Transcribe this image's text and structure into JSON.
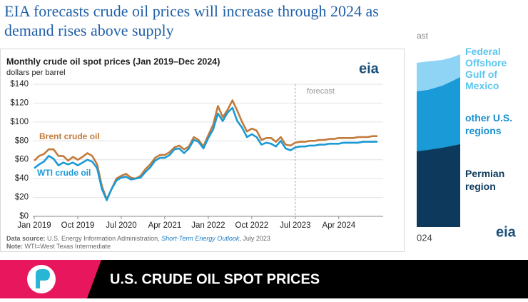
{
  "headline": "EIA forecasts crude oil prices will increase through 2024 as demand rises above supply",
  "chart_data": {
    "type": "line",
    "title": "Monthly crude oil spot prices (Jan 2019–Dec 2024)",
    "y_label": "dollars per barrel",
    "logo": "eia",
    "forecast_label": "forecast",
    "forecast_start": "Jul 2023",
    "categories": [
      "Jan 2019",
      null,
      null,
      null,
      null,
      null,
      null,
      null,
      null,
      "Oct 2019",
      null,
      null,
      null,
      null,
      null,
      null,
      null,
      null,
      "Jul 2020",
      null,
      null,
      null,
      null,
      null,
      null,
      null,
      null,
      "Apr 2021",
      null,
      null,
      null,
      null,
      null,
      null,
      null,
      null,
      "Jan 2022",
      null,
      null,
      null,
      null,
      null,
      null,
      null,
      null,
      "Oct 2022",
      null,
      null,
      null,
      null,
      null,
      null,
      null,
      null,
      "Jul 2023",
      null,
      null,
      null,
      null,
      null,
      null,
      null,
      null,
      "Apr 2024",
      null,
      null,
      null,
      null,
      null,
      null,
      null,
      null
    ],
    "series": [
      {
        "name": "Brent crude oil",
        "color": "#c27a3a",
        "values": [
          59,
          64,
          66,
          71,
          71,
          64,
          64,
          59,
          63,
          60,
          63,
          67,
          64,
          55,
          32,
          18,
          29,
          40,
          43,
          45,
          41,
          40,
          43,
          50,
          55,
          62,
          65,
          65,
          68,
          73,
          75,
          71,
          74,
          84,
          81,
          74,
          86,
          97,
          117,
          105,
          113,
          123,
          112,
          100,
          90,
          93,
          91,
          81,
          83,
          83,
          79,
          84,
          76,
          75,
          78,
          79,
          79,
          80,
          80,
          81,
          81,
          82,
          82,
          83,
          83,
          83,
          83,
          84,
          84,
          84,
          85,
          85
        ]
      },
      {
        "name": "WTI crude oil",
        "color": "#1a9ad6",
        "values": [
          51,
          55,
          58,
          64,
          61,
          54,
          57,
          55,
          57,
          54,
          57,
          60,
          58,
          51,
          29,
          17,
          29,
          38,
          41,
          42,
          39,
          40,
          41,
          47,
          52,
          59,
          62,
          62,
          65,
          71,
          72,
          67,
          72,
          81,
          79,
          72,
          83,
          92,
          109,
          101,
          110,
          115,
          101,
          94,
          84,
          87,
          84,
          76,
          78,
          77,
          74,
          80,
          72,
          70,
          73,
          74,
          74,
          75,
          75,
          76,
          76,
          77,
          77,
          77,
          78,
          78,
          78,
          78,
          79,
          79,
          79,
          79
        ]
      }
    ],
    "ylim": [
      0,
      140
    ],
    "yticks": [
      {
        "value": 0,
        "label": "$0"
      },
      {
        "value": 20,
        "label": "$20"
      },
      {
        "value": 40,
        "label": "$40"
      },
      {
        "value": 60,
        "label": "$60"
      },
      {
        "value": 80,
        "label": "$80"
      },
      {
        "value": 100,
        "label": "$100"
      },
      {
        "value": 120,
        "label": "$120"
      },
      {
        "value": 140,
        "label": "$140"
      }
    ],
    "grid": true,
    "source_label": "Data source:",
    "source_text": "U.S. Energy Information Administration,",
    "source_link": "Short-Term Energy Outlook",
    "source_date": ", July 2023",
    "note_label": "Note:",
    "note_text": "WTI=West Texas Intermediate"
  },
  "side_panel": {
    "title_fragment": "ast",
    "labels": [
      "Federal Offshore Gulf of Mexico",
      "other U.S. regions",
      "Permian region"
    ],
    "x_fragment": "024",
    "logo": "eia"
  },
  "banner": {
    "title": "U.S. CRUDE OIL SPOT PRICES"
  }
}
